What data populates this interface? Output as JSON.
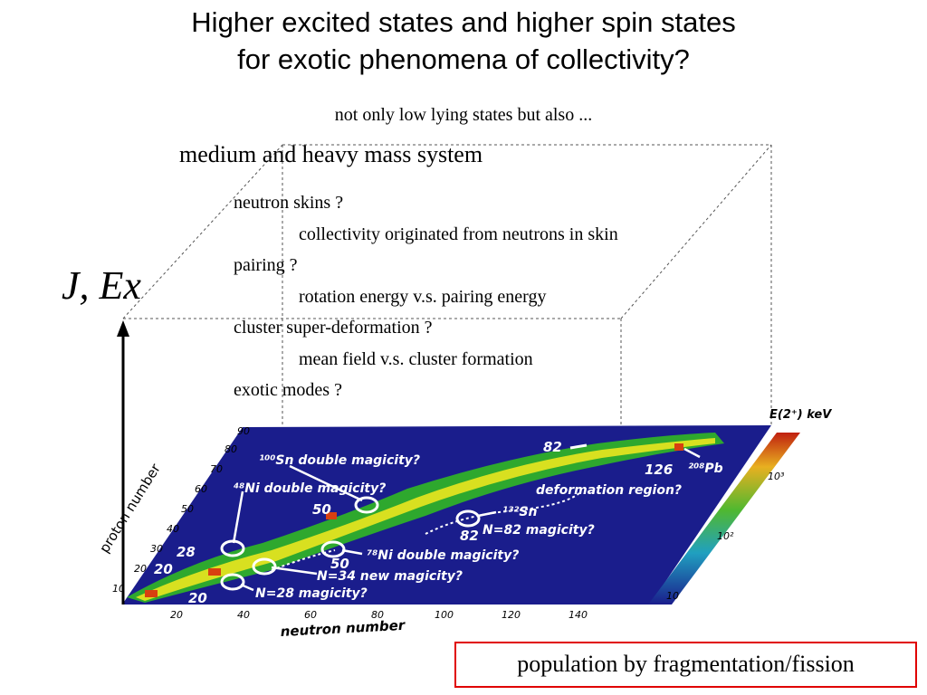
{
  "title_line1": "Higher excited states and higher spin states",
  "title_line2": "for exotic phenomena of collectivity?",
  "subtitle": "not only low lying states but also ...",
  "system": "medium and heavy mass system",
  "topics": [
    {
      "question": "neutron skins ?",
      "detail": "collectivity originated from neutrons in skin"
    },
    {
      "question": "pairing ?",
      "detail": "rotation energy v.s. pairing energy"
    },
    {
      "question": "cluster super-deformation ?",
      "detail": "mean field v.s. cluster formation"
    },
    {
      "question": "exotic modes ?",
      "detail": ""
    }
  ],
  "vertical_axis_label": "J, Ex",
  "caption": "population by fragmentation/fission",
  "chart": {
    "colorbar_title": "E(2⁺) keV",
    "colorbar_ticks": [
      "10³",
      "10²",
      "10"
    ],
    "x_axis_label": "neutron number",
    "y_axis_label": "proton number",
    "x_ticks": [
      "20",
      "40",
      "60",
      "80",
      "100",
      "120",
      "140"
    ],
    "y_ticks": [
      "90",
      "80",
      "70",
      "60",
      "50",
      "40",
      "30",
      "20",
      "10"
    ],
    "colors": {
      "background": "#1a1d8c",
      "valley": "#2ea82e",
      "bright": "#d8e020",
      "hot": "#d84010"
    },
    "magic_labels": [
      "82",
      "126",
      "50",
      "82",
      "28",
      "20",
      "50",
      "20"
    ],
    "annotations": [
      "¹⁰⁰Sn double magicity?",
      "⁴⁸Ni double magicity?",
      "²⁰⁸Pb",
      "deformation region?",
      "¹³²Sn",
      "N=82 magicity?",
      "⁷⁸Ni double magicity?",
      "N=34 new magicity?",
      "N=28 magicity?"
    ]
  }
}
